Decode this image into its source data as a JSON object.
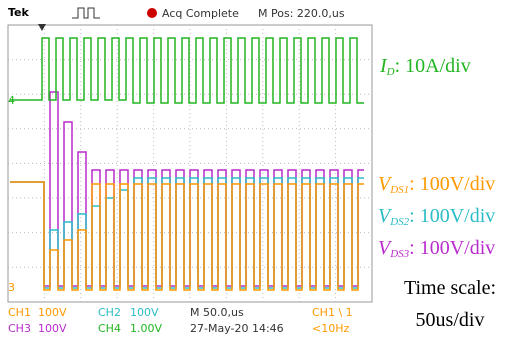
{
  "header": {
    "brand": "Tek",
    "status": "Acq Complete",
    "position": "M Pos: 220.0,us"
  },
  "footer": {
    "row1": [
      "CH1",
      "100V",
      "CH2",
      "100V",
      "M 50.0,us",
      "CH1 \\ 1"
    ],
    "row2": [
      "CH3",
      "100V",
      "CH4",
      "1.00V",
      "27-May-20 14:46",
      "<10Hz"
    ]
  },
  "markers": [
    "4",
    "3"
  ],
  "labels": [
    {
      "symbol": "I",
      "subscript": "D",
      "text": ": 10A/div"
    },
    {
      "symbol": "V",
      "subscript": "DS1",
      "text": ": 100V/div"
    },
    {
      "symbol": "V",
      "subscript": "DS2",
      "text": ": 100V/div"
    },
    {
      "symbol": "V",
      "subscript": "DS3",
      "text": ": 100V/div"
    }
  ],
  "time_scale": [
    "Time scale:",
    "50us/div"
  ]
}
